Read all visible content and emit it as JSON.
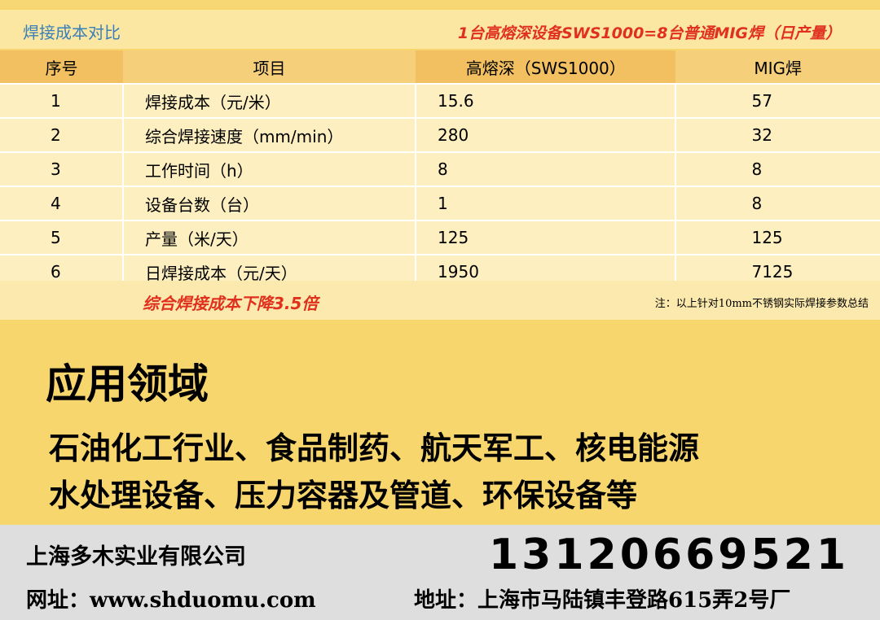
{
  "header": {
    "title": "焊接成本对比",
    "note": "1台高熔深设备SWS1000=8台普通MIG焊（日产量）"
  },
  "table": {
    "columns": [
      "序号",
      "项目",
      "高熔深（SWS1000）",
      "MIG焊"
    ],
    "rows": [
      [
        1,
        "焊接成本（元/米）",
        15.6,
        57
      ],
      [
        2,
        "综合焊接速度（mm/min）",
        280,
        32
      ],
      [
        3,
        "工作时间（h）",
        8,
        8
      ],
      [
        4,
        "设备台数（台）",
        1,
        8
      ],
      [
        5,
        "产量（米/天）",
        125,
        125
      ],
      [
        6,
        "日焊接成本（元/天）",
        1950,
        7125
      ]
    ]
  },
  "summary": "综合焊接成本下降3.5倍",
  "footnote": "注：以上针对10mm不锈钢实际焊接参数总结",
  "applications": {
    "title": "应用领域",
    "lines": [
      "石油化工行业、食品制药、航天军工、核电能源",
      "水处理设备、压力容器及管道、环保设备等"
    ]
  },
  "contact": {
    "company": "上海多木实业有限公司",
    "phone": "13120669521",
    "website": "网址：www.shduomu.com",
    "address": "地址：上海市马陆镇丰登路615弄2号厂"
  }
}
